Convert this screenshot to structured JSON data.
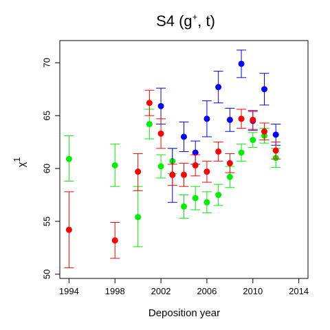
{
  "chart_data": {
    "type": "scatter",
    "title_main": "S4  (g",
    "title_sup": "+",
    "title_end": ", t)",
    "xlabel": "Deposition year",
    "ylabel_main": "χ",
    "ylabel_sup": "1",
    "xlim": [
      1993.2,
      2014.8
    ],
    "ylim": [
      49.6,
      72.1
    ],
    "xticks": [
      1994,
      1998,
      2002,
      2006,
      2010,
      2014
    ],
    "xtick_labels": [
      "1994",
      "1998",
      "2002",
      "2006",
      "2010",
      "2014"
    ],
    "yticks": [
      50,
      55,
      60,
      65,
      70
    ],
    "ytick_labels": [
      "50",
      "55",
      "60",
      "65",
      "70"
    ],
    "grid": false,
    "series": [
      {
        "color": "#00ee00",
        "points": [
          {
            "x": 1994,
            "y": 60.9,
            "lo": 58.8,
            "hi": 63.1
          },
          {
            "x": 1998,
            "y": 60.3,
            "lo": 58.3,
            "hi": 62.3
          },
          {
            "x": 2000,
            "y": 55.4,
            "lo": 52.6,
            "hi": 58.3
          },
          {
            "x": 2001,
            "y": 64.2,
            "lo": 62.8,
            "hi": 65.6
          },
          {
            "x": 2002,
            "y": 60.2,
            "lo": 59.1,
            "hi": 61.3
          },
          {
            "x": 2003,
            "y": 60.7,
            "lo": 59.5,
            "hi": 61.9
          },
          {
            "x": 2004,
            "y": 56.4,
            "lo": 55.3,
            "hi": 57.5
          },
          {
            "x": 2005,
            "y": 57.2,
            "lo": 56.1,
            "hi": 58.3
          },
          {
            "x": 2006,
            "y": 56.8,
            "lo": 55.8,
            "hi": 57.8
          },
          {
            "x": 2007,
            "y": 57.5,
            "lo": 56.5,
            "hi": 58.5
          },
          {
            "x": 2008,
            "y": 59.2,
            "lo": 58.2,
            "hi": 60.2
          },
          {
            "x": 2009,
            "y": 61.5,
            "lo": 60.7,
            "hi": 62.3
          },
          {
            "x": 2010,
            "y": 62.7,
            "lo": 62.0,
            "hi": 63.4
          },
          {
            "x": 2011,
            "y": 63.1,
            "lo": 62.4,
            "hi": 63.8
          },
          {
            "x": 2012,
            "y": 61.0,
            "lo": 60.1,
            "hi": 61.9
          }
        ]
      },
      {
        "color": "#0000ff",
        "points": [
          {
            "x": 2002,
            "y": 65.9,
            "lo": 64.2,
            "hi": 67.6
          },
          {
            "x": 2003,
            "y": 59.4,
            "lo": 56.8,
            "hi": 61.9
          },
          {
            "x": 2004,
            "y": 63.0,
            "lo": 61.6,
            "hi": 64.4
          },
          {
            "x": 2005,
            "y": 61.5,
            "lo": 60.4,
            "hi": 62.6
          },
          {
            "x": 2006,
            "y": 64.7,
            "lo": 63.0,
            "hi": 66.4
          },
          {
            "x": 2007,
            "y": 67.7,
            "lo": 66.2,
            "hi": 69.2
          },
          {
            "x": 2008,
            "y": 64.6,
            "lo": 63.5,
            "hi": 65.7
          },
          {
            "x": 2009,
            "y": 69.9,
            "lo": 68.6,
            "hi": 71.2
          },
          {
            "x": 2010,
            "y": 64.5,
            "lo": 63.6,
            "hi": 65.4
          },
          {
            "x": 2011,
            "y": 67.5,
            "lo": 66.0,
            "hi": 69.0
          },
          {
            "x": 2012,
            "y": 63.2,
            "lo": 62.2,
            "hi": 64.2
          }
        ]
      },
      {
        "color": "#ff0000",
        "points": [
          {
            "x": 1994,
            "y": 54.2,
            "lo": 50.6,
            "hi": 57.8
          },
          {
            "x": 1998,
            "y": 53.2,
            "lo": 51.5,
            "hi": 54.9
          },
          {
            "x": 2000,
            "y": 59.7,
            "lo": 57.9,
            "hi": 61.4
          },
          {
            "x": 2001,
            "y": 66.2,
            "lo": 65.0,
            "hi": 67.4
          },
          {
            "x": 2002,
            "y": 63.3,
            "lo": 61.9,
            "hi": 64.7
          },
          {
            "x": 2003,
            "y": 59.4,
            "lo": 58.4,
            "hi": 60.4
          },
          {
            "x": 2004,
            "y": 59.4,
            "lo": 58.3,
            "hi": 60.5
          },
          {
            "x": 2005,
            "y": 60.3,
            "lo": 59.3,
            "hi": 61.3
          },
          {
            "x": 2006,
            "y": 59.7,
            "lo": 58.7,
            "hi": 60.7
          },
          {
            "x": 2007,
            "y": 61.6,
            "lo": 60.7,
            "hi": 62.5
          },
          {
            "x": 2008,
            "y": 60.5,
            "lo": 59.6,
            "hi": 61.4
          },
          {
            "x": 2009,
            "y": 64.7,
            "lo": 63.8,
            "hi": 65.6
          },
          {
            "x": 2010,
            "y": 64.6,
            "lo": 63.7,
            "hi": 65.5
          },
          {
            "x": 2011,
            "y": 63.5,
            "lo": 62.7,
            "hi": 64.3
          },
          {
            "x": 2012,
            "y": 61.7,
            "lo": 60.9,
            "hi": 62.5
          }
        ]
      }
    ]
  }
}
